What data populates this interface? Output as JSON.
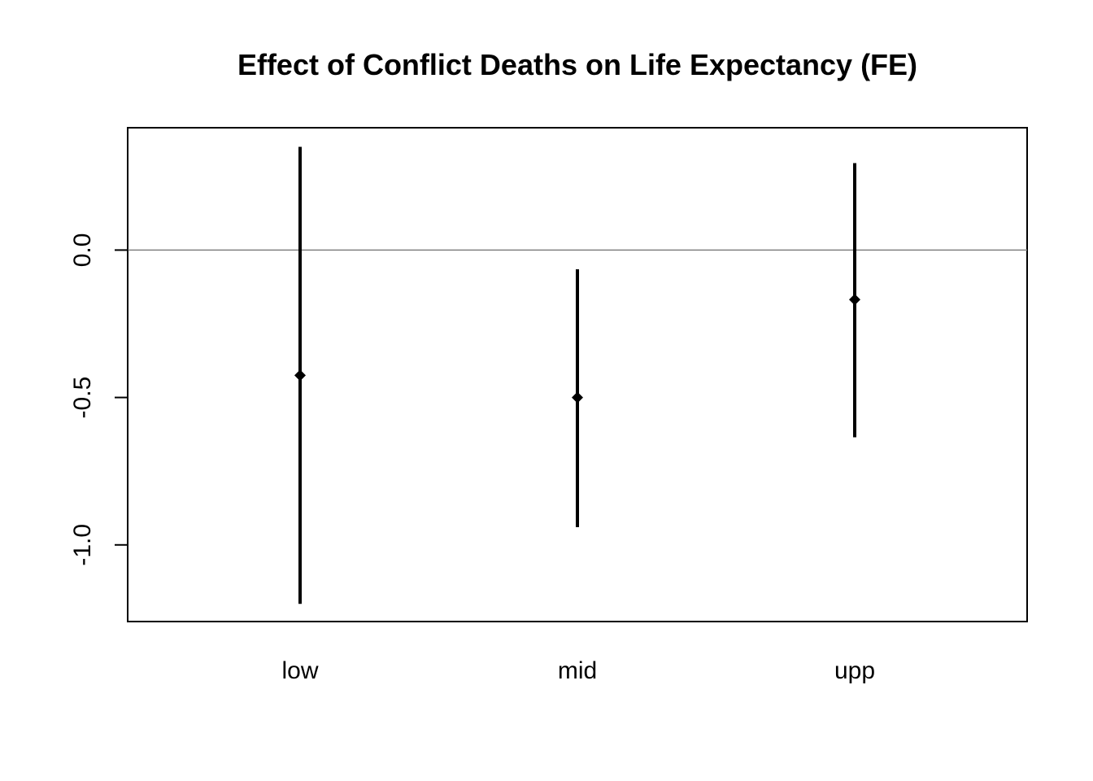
{
  "chart_data": {
    "type": "scatter",
    "title": "Effect of Conflict Deaths on Life Expectancy (FE)",
    "xlabel": "",
    "ylabel": "",
    "categories": [
      "low",
      "mid",
      "upp"
    ],
    "series": [
      {
        "estimates": [
          -0.425,
          -0.5,
          -0.168
        ],
        "lower": [
          -1.2,
          -0.94,
          -0.635
        ],
        "upper": [
          0.35,
          -0.065,
          0.295
        ]
      }
    ],
    "reference_line": 0.0,
    "yticks": [
      0.0,
      -0.5,
      -1.0
    ],
    "ytick_labels": [
      "0.0",
      "-0.5",
      "-1.0"
    ],
    "ylim": [
      -1.26,
      0.415
    ],
    "grid": false,
    "legend": "none"
  }
}
